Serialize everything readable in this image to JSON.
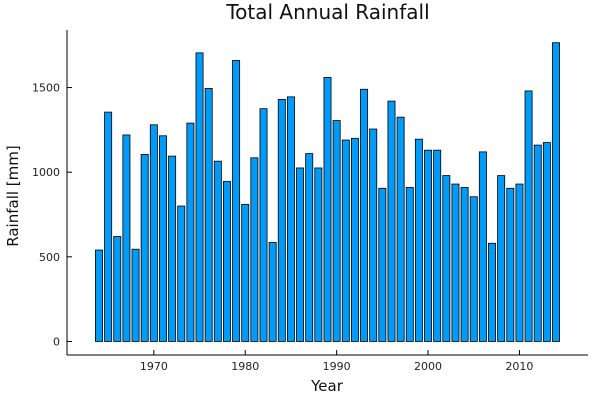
{
  "chart_data": {
    "type": "bar",
    "title": "Total Annual Rainfall",
    "xlabel": "Year",
    "ylabel": "Rainfall [mm]",
    "x": [
      1964,
      1965,
      1966,
      1967,
      1968,
      1969,
      1970,
      1971,
      1972,
      1973,
      1974,
      1975,
      1976,
      1977,
      1978,
      1979,
      1980,
      1981,
      1982,
      1983,
      1984,
      1985,
      1986,
      1987,
      1988,
      1989,
      1990,
      1991,
      1992,
      1993,
      1994,
      1995,
      1996,
      1997,
      1998,
      1999,
      2000,
      2001,
      2002,
      2003,
      2004,
      2005,
      2006,
      2007,
      2008,
      2009,
      2010,
      2011,
      2012,
      2013,
      2014
    ],
    "values": [
      540,
      1355,
      620,
      1220,
      545,
      1105,
      1280,
      1215,
      1095,
      800,
      1290,
      1705,
      1495,
      1065,
      945,
      1660,
      810,
      1085,
      1375,
      585,
      1430,
      1445,
      1025,
      1110,
      1025,
      1560,
      1305,
      1190,
      1200,
      1490,
      1255,
      905,
      1420,
      1325,
      910,
      1195,
      1130,
      1130,
      980,
      930,
      910,
      855,
      1120,
      580,
      980,
      905,
      930,
      1480,
      1160,
      1175,
      1765
    ],
    "xlim": [
      1960.5,
      2017.5
    ],
    "ylim": [
      -80,
      1840
    ],
    "xticks": [
      1970,
      1980,
      1990,
      2000,
      2010
    ],
    "yticks": [
      0,
      500,
      1000,
      1500
    ],
    "grid": false,
    "legend": "none",
    "colors": {
      "bar_fill": "#009AF9",
      "bar_stroke": "#000000",
      "axis": "#000000",
      "text": "#222222"
    }
  }
}
